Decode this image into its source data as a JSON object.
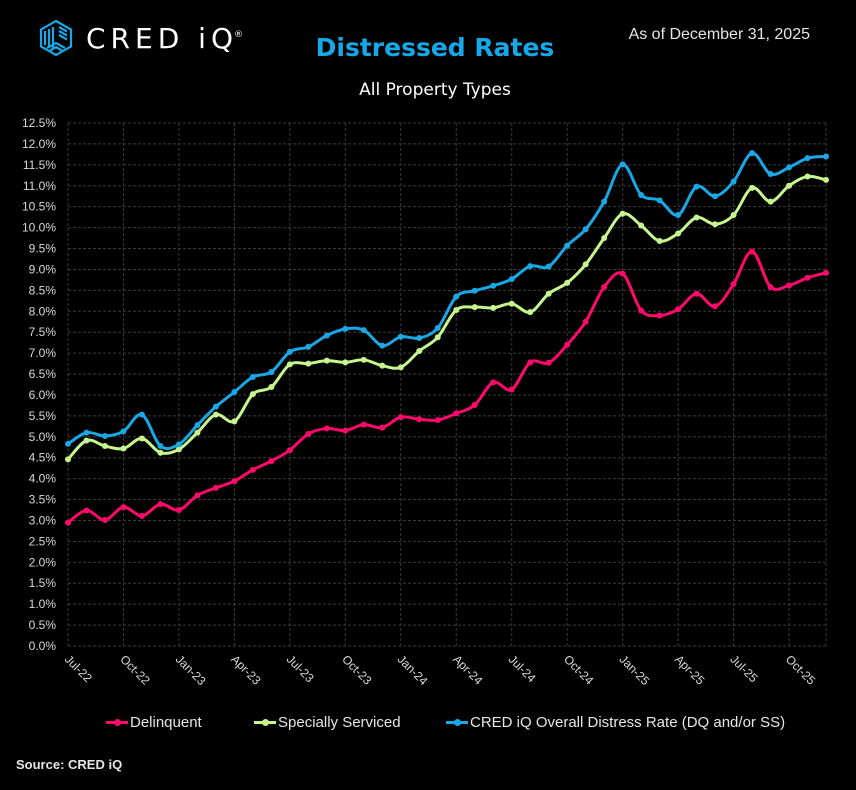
{
  "header": {
    "logo_text": "CRED iQ",
    "logo_mark": "®",
    "title": "Distressed Rates",
    "subtitle": "All Property Types",
    "as_of": "As of December 31, 2025"
  },
  "footer": {
    "source": "Source:  CRED iQ"
  },
  "colors": {
    "title": "#16a9ea",
    "delinquent": "#ff0a6c",
    "specially_serviced": "#c6f68d",
    "overall": "#1aa7e5",
    "grid": "#3a3a3a",
    "axis_text": "#d9d9d9"
  },
  "chart_data": {
    "type": "line",
    "title": "Distressed Rates",
    "subtitle": "All Property Types",
    "xlabel": "",
    "ylabel": "",
    "ylim": [
      0,
      12.5
    ],
    "y_tick_step": 0.5,
    "y_tick_format": "percent_1dp",
    "grid": true,
    "legend_position": "bottom",
    "x_tick_labels": [
      "Jul-22",
      "Oct-22",
      "Jan-23",
      "Apr-23",
      "Jul-23",
      "Oct-23",
      "Jan-24",
      "Apr-24",
      "Jul-24",
      "Oct-24",
      "Jan-25",
      "Apr-25",
      "Jul-25",
      "Oct-25"
    ],
    "x_tick_interval_months": 3,
    "x": [
      "Jul-22",
      "Aug-22",
      "Sep-22",
      "Oct-22",
      "Nov-22",
      "Dec-22",
      "Jan-23",
      "Feb-23",
      "Mar-23",
      "Apr-23",
      "May-23",
      "Jun-23",
      "Jul-23",
      "Aug-23",
      "Sep-23",
      "Oct-23",
      "Nov-23",
      "Dec-23",
      "Jan-24",
      "Feb-24",
      "Mar-24",
      "Apr-24",
      "May-24",
      "Jun-24",
      "Jul-24",
      "Aug-24",
      "Sep-24",
      "Oct-24",
      "Nov-24",
      "Dec-24",
      "Jan-25",
      "Feb-25",
      "Mar-25",
      "Apr-25",
      "May-25",
      "Jun-25",
      "Jul-25",
      "Aug-25",
      "Sep-25",
      "Oct-25",
      "Nov-25",
      "Dec-25"
    ],
    "series": [
      {
        "name": "Delinquent",
        "color": "#ff0a6c",
        "values": [
          2.95,
          3.24,
          3.01,
          3.32,
          3.11,
          3.39,
          3.25,
          3.6,
          3.78,
          3.94,
          4.21,
          4.42,
          4.68,
          5.07,
          5.2,
          5.15,
          5.29,
          5.22,
          5.47,
          5.42,
          5.4,
          5.56,
          5.76,
          6.3,
          6.13,
          6.78,
          6.77,
          7.2,
          7.75,
          8.58,
          8.9,
          8.02,
          7.9,
          8.05,
          8.42,
          8.12,
          8.65,
          9.43,
          8.58,
          8.62,
          8.8,
          8.92
        ]
      },
      {
        "name": "Specially Serviced",
        "color": "#c6f68d",
        "values": [
          4.46,
          4.91,
          4.78,
          4.72,
          4.96,
          4.62,
          4.7,
          5.1,
          5.53,
          5.37,
          6.02,
          6.19,
          6.73,
          6.75,
          6.82,
          6.78,
          6.84,
          6.7,
          6.66,
          7.05,
          7.38,
          8.03,
          8.1,
          8.08,
          8.18,
          7.98,
          8.42,
          8.68,
          9.12,
          9.75,
          10.33,
          10.05,
          9.68,
          9.86,
          10.24,
          10.08,
          10.3,
          10.95,
          10.62,
          11.0,
          11.22,
          11.14
        ]
      },
      {
        "name": "CRED iQ Overall Distress Rate (DQ and/or SS)",
        "color": "#1aa7e5",
        "values": [
          4.83,
          5.1,
          5.02,
          5.13,
          5.53,
          4.78,
          4.82,
          5.28,
          5.72,
          6.07,
          6.43,
          6.55,
          7.03,
          7.15,
          7.42,
          7.58,
          7.55,
          7.18,
          7.39,
          7.36,
          7.6,
          8.35,
          8.49,
          8.61,
          8.77,
          9.08,
          9.07,
          9.57,
          9.96,
          10.62,
          11.51,
          10.78,
          10.65,
          10.3,
          10.98,
          10.75,
          11.1,
          11.78,
          11.28,
          11.44,
          11.66,
          11.7
        ]
      }
    ]
  }
}
